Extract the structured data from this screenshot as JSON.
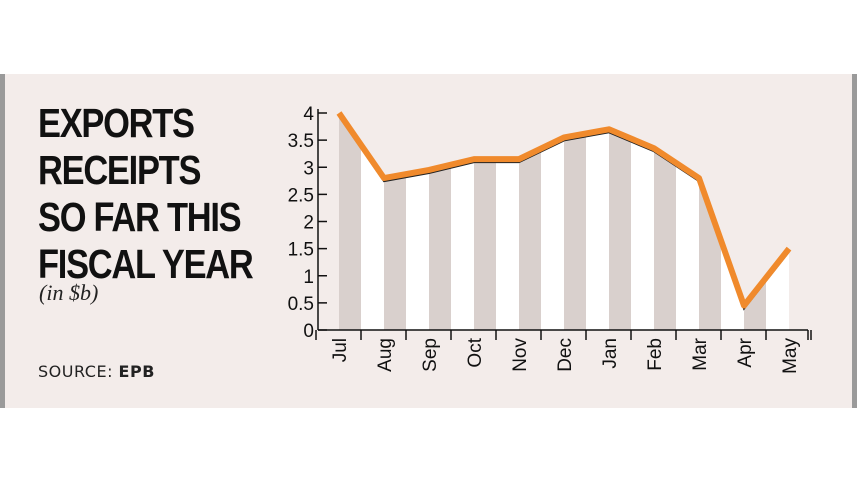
{
  "title_lines": [
    "EXPORTS",
    "RECEIPTS",
    "SO FAR THIS",
    "FISCAL YEAR"
  ],
  "unit": "(in $b)",
  "source": {
    "label": "SOURCE:",
    "name": "EPB"
  },
  "colors": {
    "line": "#f08a2c",
    "fill": "#d9d0cd",
    "panel": "#f3ecea"
  },
  "chart_data": {
    "type": "line",
    "categories": [
      "Jul",
      "Aug",
      "Sep",
      "Oct",
      "Nov",
      "Dec",
      "Jan",
      "Feb",
      "Mar",
      "Apr",
      "May"
    ],
    "series": [
      {
        "values": [
          4.0,
          2.8,
          2.95,
          3.15,
          3.15,
          3.55,
          3.7,
          3.35,
          2.8,
          0.45,
          1.5
        ]
      }
    ],
    "ylim": [
      0,
      4
    ],
    "yticks": [
      "0",
      "0.5",
      "1",
      "1.5",
      "2",
      "2.5",
      "3",
      "3.5",
      "4"
    ],
    "grid": false,
    "title": "",
    "xlabel": "",
    "ylabel": ""
  }
}
